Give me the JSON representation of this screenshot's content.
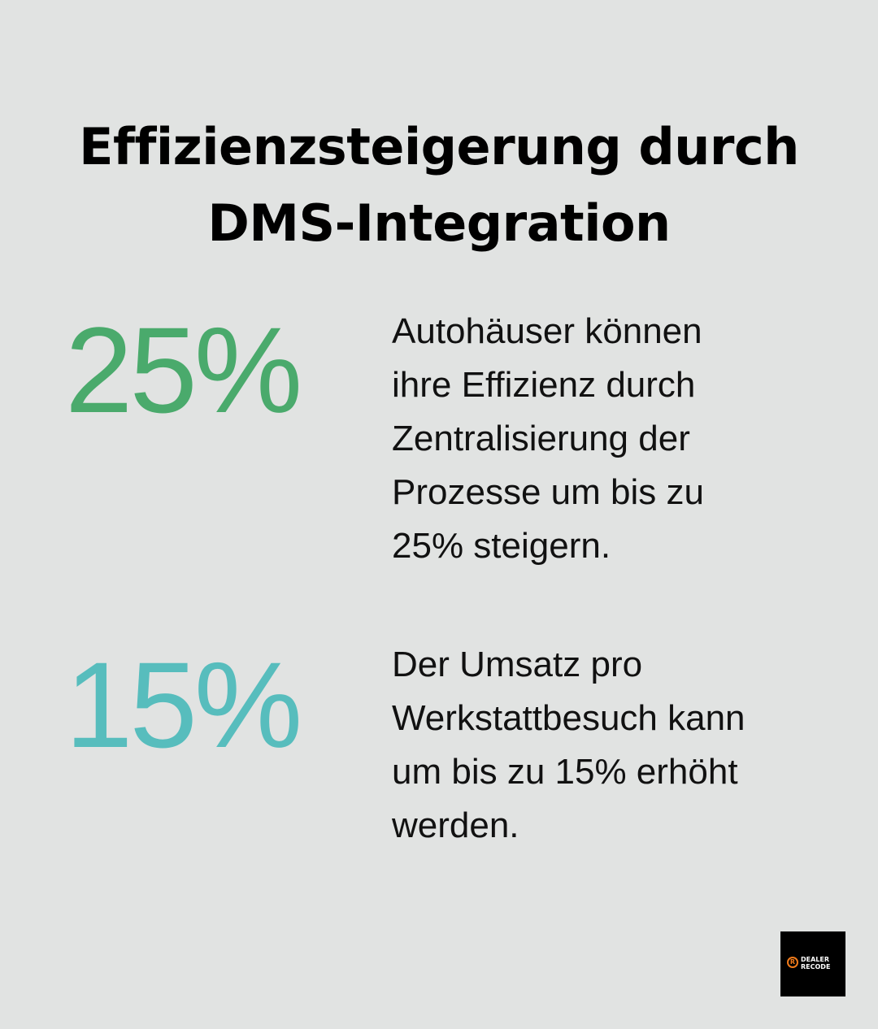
{
  "title": {
    "lines": [
      "Effizienzsteigerung durch",
      "DMS-Integration"
    ]
  },
  "stats": [
    {
      "value": "25%",
      "color": "#4aaa6c",
      "text_lines": [
        "Autohäuser können",
        "ihre Effizienz durch",
        "Zentralisierung der",
        "Prozesse um bis zu",
        "25% steigern."
      ]
    },
    {
      "value": "15%",
      "color": "#57bdbd",
      "text_lines": [
        "Der Umsatz pro",
        "Werkstattbesuch kann",
        "um bis zu 15% erhöht",
        "werden."
      ]
    }
  ],
  "logo": {
    "mark": "R",
    "line1": "DEALER",
    "line2": "RECODE",
    "accent_color": "#f07a1a"
  },
  "colors": {
    "background": "#e1e3e2",
    "title": "#000000",
    "body_text": "#111111"
  }
}
